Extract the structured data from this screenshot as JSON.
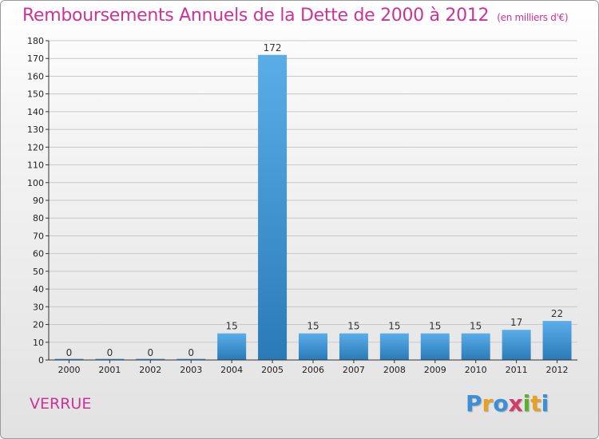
{
  "header": {
    "title": "Remboursements Annuels de la Dette de 2000 à 2012",
    "subtitle": "(en milliers d'€)"
  },
  "commune": "VERRUE",
  "logo": {
    "letters": [
      "P",
      "r",
      "o",
      "x",
      "i",
      "t",
      "i"
    ],
    "colors": [
      "#3a8fd6",
      "#e8a020",
      "#3a8fd6",
      "#d63a6a",
      "#5bb02f",
      "#e8a020",
      "#3a8fd6"
    ]
  },
  "colors": {
    "bar_light": "#5aaee8",
    "bar_dark": "#2a7ab8",
    "grid": "#c8c8c8",
    "axis": "#333333"
  },
  "chart_data": {
    "type": "bar",
    "title": "Remboursements Annuels de la Dette de 2000 à 2012",
    "xlabel": "",
    "ylabel": "",
    "categories": [
      "2000",
      "2001",
      "2002",
      "2003",
      "2004",
      "2005",
      "2006",
      "2007",
      "2008",
      "2009",
      "2010",
      "2011",
      "2012"
    ],
    "values": [
      0,
      0,
      0,
      0,
      15,
      172,
      15,
      15,
      15,
      15,
      15,
      17,
      22
    ],
    "labels": [
      "0",
      "0",
      "0",
      "0",
      "15",
      "172",
      "15",
      "15",
      "15",
      "15",
      "15",
      "17",
      "22"
    ],
    "ylim": [
      0,
      180
    ],
    "yticks": [
      0,
      10,
      20,
      30,
      40,
      50,
      60,
      70,
      80,
      90,
      100,
      110,
      120,
      130,
      140,
      150,
      160,
      170,
      180
    ],
    "grid": true
  }
}
